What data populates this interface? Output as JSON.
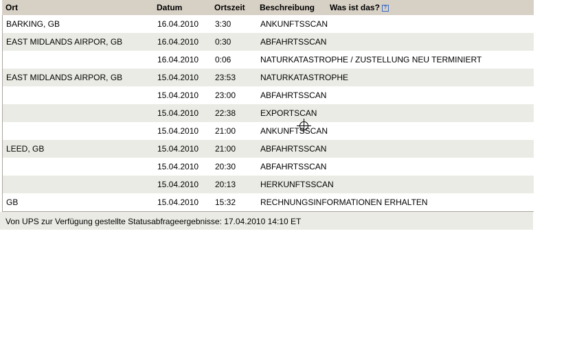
{
  "header": {
    "ort": "Ort",
    "datum": "Datum",
    "ortszeit": "Ortszeit",
    "beschreibung": "Beschreibung",
    "help_label": "Was ist das?",
    "help_icon": "?"
  },
  "rows": [
    {
      "ort": "BARKING, GB",
      "datum": "16.04.2010",
      "zeit": "3:30",
      "beschreibung": "ANKUNFTSSCAN"
    },
    {
      "ort": "EAST MIDLANDS AIRPOR, GB",
      "datum": "16.04.2010",
      "zeit": "0:30",
      "beschreibung": "ABFAHRTSSCAN"
    },
    {
      "ort": "",
      "datum": "16.04.2010",
      "zeit": "0:06",
      "beschreibung": "NATURKATASTROPHE / ZUSTELLUNG NEU TERMINIERT"
    },
    {
      "ort": "EAST MIDLANDS AIRPOR, GB",
      "datum": "15.04.2010",
      "zeit": "23:53",
      "beschreibung": "NATURKATASTROPHE"
    },
    {
      "ort": "",
      "datum": "15.04.2010",
      "zeit": "23:00",
      "beschreibung": "ABFAHRTSSCAN"
    },
    {
      "ort": "",
      "datum": "15.04.2010",
      "zeit": "22:38",
      "beschreibung": "EXPORTSCAN"
    },
    {
      "ort": "",
      "datum": "15.04.2010",
      "zeit": "21:00",
      "beschreibung": "ANKUNFTSSCAN"
    },
    {
      "ort": "LEED, GB",
      "datum": "15.04.2010",
      "zeit": "21:00",
      "beschreibung": "ABFAHRTSSCAN"
    },
    {
      "ort": "",
      "datum": "15.04.2010",
      "zeit": "20:30",
      "beschreibung": "ABFAHRTSSCAN"
    },
    {
      "ort": "",
      "datum": "15.04.2010",
      "zeit": "20:13",
      "beschreibung": "HERKUNFTSSCAN"
    },
    {
      "ort": "GB",
      "datum": "15.04.2010",
      "zeit": "15:32",
      "beschreibung": "RECHNUNGSINFORMATIONEN ERHALTEN"
    }
  ],
  "footer": {
    "text": "Von UPS zur Verfügung gestellte Statusabfrageergebnisse:  17.04.2010 14:10  ET"
  }
}
